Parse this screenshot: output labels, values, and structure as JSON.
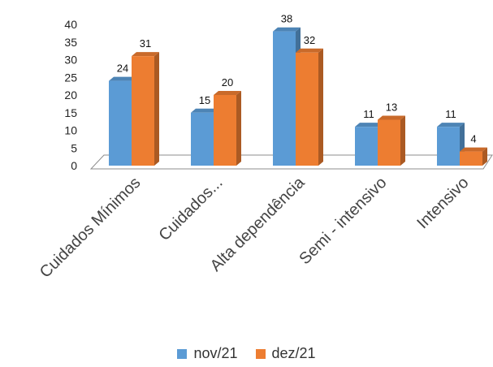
{
  "chart_data": {
    "type": "bar",
    "categories": [
      "Cuidados Mínimos",
      "Cuidados...",
      "Alta dependência",
      "Semi - intensivo",
      "Intensivo"
    ],
    "series": [
      {
        "name": "nov/21",
        "values": [
          24,
          15,
          38,
          11,
          11
        ],
        "color": "#5B9BD5"
      },
      {
        "name": "dez/21",
        "values": [
          31,
          20,
          32,
          13,
          4
        ],
        "color": "#ED7D31"
      }
    ],
    "yticks": [
      0,
      5,
      10,
      15,
      20,
      25,
      30,
      35,
      40
    ],
    "ylim": [
      0,
      40
    ],
    "grid": false,
    "legend": "bottom",
    "three_d": true
  }
}
